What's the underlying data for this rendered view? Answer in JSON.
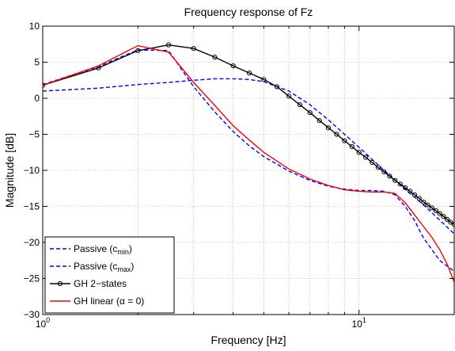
{
  "chart_data": {
    "type": "line",
    "title": "Frequency response of Fz",
    "xlabel": "Frequency [Hz]",
    "ylabel": "Magnitude [dB]",
    "xscale": "log",
    "xlim": [
      1,
      20
    ],
    "ylim": [
      -30,
      10
    ],
    "xticks": [
      {
        "value": 1,
        "base": "10",
        "exp": "0"
      },
      {
        "value": 10,
        "base": "10",
        "exp": "1"
      }
    ],
    "yticks": [
      10,
      5,
      0,
      -5,
      -10,
      -15,
      -20,
      -25,
      -30
    ],
    "yticklabels": [
      "10",
      "5",
      "0",
      "−5",
      "−10",
      "−15",
      "−20",
      "−25",
      "−30"
    ],
    "grid": "dotted",
    "legend_position": "bottom-left",
    "series": [
      {
        "name": "Passive (c",
        "subscript": "min",
        "suffix": ")",
        "color": "#0000ff",
        "style": "dashed",
        "marker": "none",
        "x": [
          1,
          1.5,
          2,
          2.5,
          3,
          3.5,
          4,
          4.5,
          5,
          6,
          7,
          8,
          10,
          12,
          14,
          16,
          18,
          20
        ],
        "y": [
          1.0,
          1.4,
          1.9,
          2.2,
          2.5,
          2.7,
          2.7,
          2.6,
          2.3,
          1.0,
          -0.9,
          -3.0,
          -6.8,
          -10.0,
          -12.6,
          -14.8,
          -16.9,
          -18.8
        ]
      },
      {
        "name": "Passive (c",
        "subscript": "max",
        "suffix": ")",
        "color": "#0000ff",
        "style": "dashed",
        "marker": "none",
        "x": [
          1,
          1.5,
          2,
          2.5,
          3,
          3.5,
          4,
          4.5,
          5,
          6,
          7,
          8,
          9,
          10,
          11,
          12,
          13,
          14,
          15,
          16,
          18,
          20
        ],
        "y": [
          1.9,
          4.4,
          6.7,
          6.6,
          1.6,
          -1.9,
          -4.6,
          -6.6,
          -8.1,
          -10.1,
          -11.4,
          -12.2,
          -12.6,
          -12.8,
          -12.8,
          -12.9,
          -13.4,
          -15.0,
          -17.0,
          -19.4,
          -22.5,
          -24.0
        ]
      },
      {
        "name": "GH 2−states",
        "color": "#000000",
        "style": "solid",
        "marker": "circle",
        "x": [
          1,
          1.5,
          2,
          2.5,
          3,
          3.5,
          4,
          4.5,
          5,
          5.5,
          6,
          6.5,
          7,
          7.5,
          8,
          8.5,
          9,
          9.5,
          10,
          10.5,
          11,
          11.5,
          12,
          12.5,
          13,
          13.5,
          14,
          14.5,
          15,
          15.5,
          16,
          16.5,
          17,
          17.5,
          18,
          18.5,
          19,
          19.5,
          20
        ],
        "y": [
          1.8,
          4.2,
          6.6,
          7.4,
          6.9,
          5.7,
          4.5,
          3.5,
          2.6,
          1.6,
          0.3,
          -0.9,
          -2.0,
          -3.1,
          -4.1,
          -5.0,
          -5.9,
          -6.7,
          -7.5,
          -8.2,
          -8.9,
          -9.6,
          -10.2,
          -10.8,
          -11.4,
          -11.9,
          -12.4,
          -12.9,
          -13.4,
          -13.9,
          -14.4,
          -14.8,
          -15.2,
          -15.6,
          -16.0,
          -16.4,
          -16.8,
          -17.2,
          -17.5
        ]
      },
      {
        "name": "GH linear (α = 0)",
        "color": "#ff0000",
        "style": "solid",
        "marker": "none",
        "x": [
          1,
          1.5,
          2,
          2.5,
          3,
          3.5,
          4,
          4.5,
          5,
          6,
          7,
          8,
          9,
          10,
          11,
          12,
          13,
          14,
          15,
          16,
          17,
          18,
          19,
          20
        ],
        "y": [
          1.8,
          4.5,
          7.3,
          6.4,
          2.2,
          -1.0,
          -3.8,
          -5.8,
          -7.5,
          -9.8,
          -11.2,
          -12.1,
          -12.7,
          -12.9,
          -13.0,
          -13.0,
          -13.2,
          -14.5,
          -16.2,
          -17.8,
          -19.3,
          -21.0,
          -23.0,
          -25.5
        ]
      }
    ]
  }
}
